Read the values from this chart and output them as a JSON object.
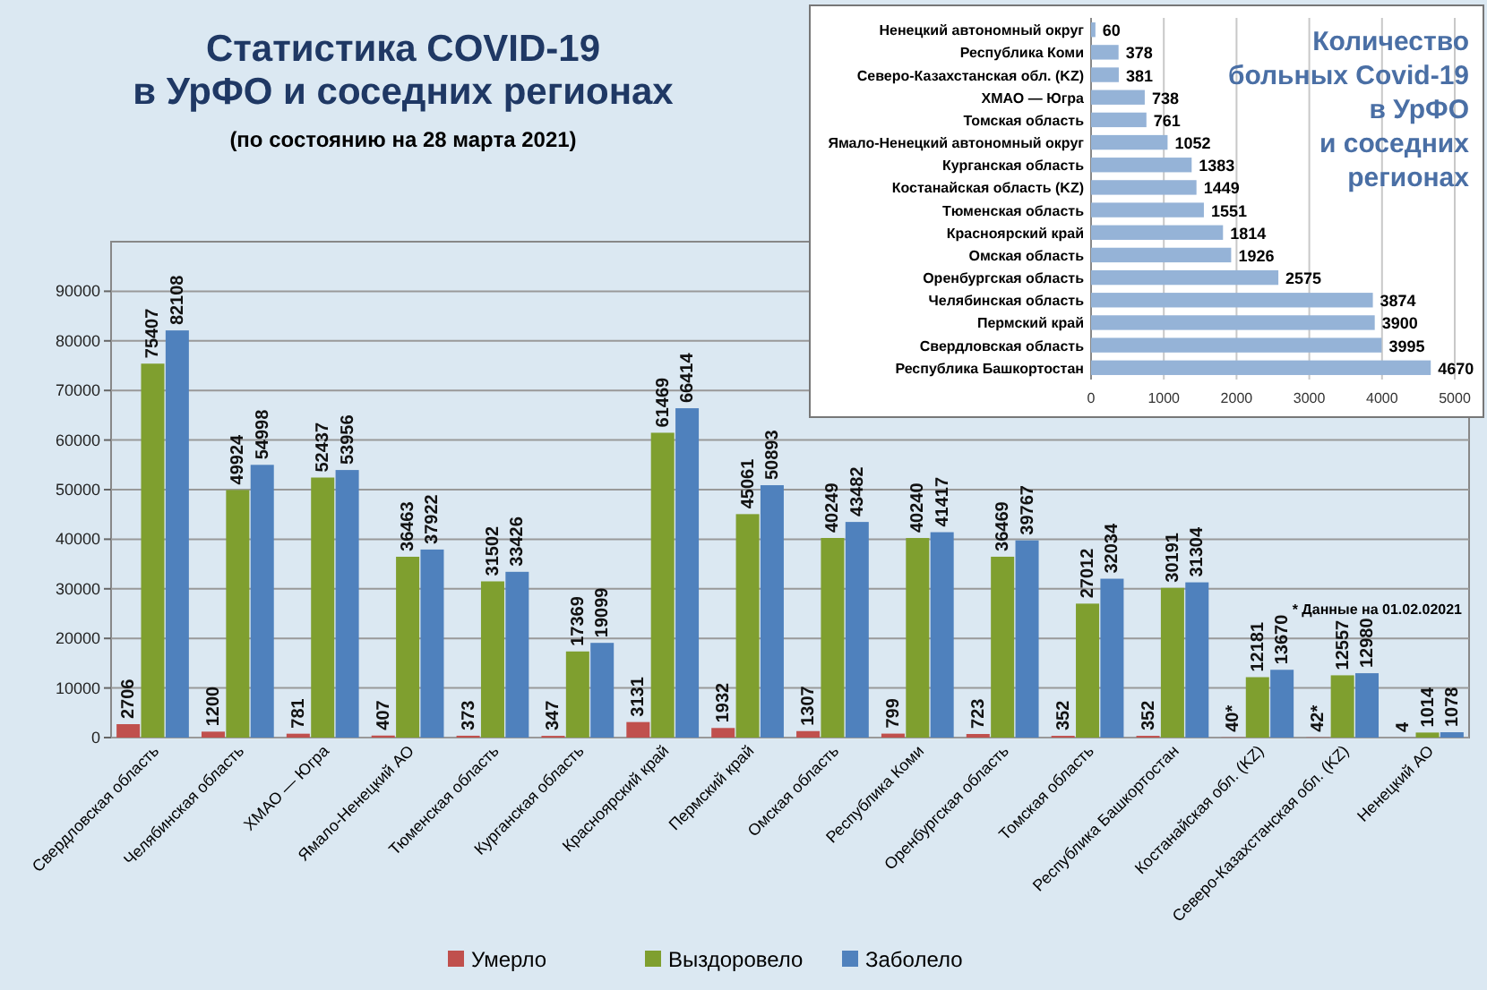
{
  "chart_data": [
    {
      "type": "bar",
      "title": "Статистика COVID-19\nв УрФО и соседних регионах",
      "subtitle": "(по состоянию на 28 марта 2021)",
      "categories": [
        "Свердловская область",
        "Челябинская область",
        "ХМАО — Югра",
        "Ямало-Ненецкий АО",
        "Тюменская область",
        "Курганская область",
        "Красноярский край",
        "Пермский край",
        "Омская область",
        "Республика Коми",
        "Оренбургская область",
        "Томская область",
        "Республика Башкортостан",
        "Костанайская обл. (KZ)",
        "Северо-Казахстанская обл. (KZ)",
        "Ненецкий АО"
      ],
      "series": [
        {
          "name": "Умерло",
          "color": "#c0504d",
          "values": [
            2706,
            1200,
            781,
            407,
            373,
            347,
            3131,
            1932,
            1307,
            799,
            723,
            352,
            352,
            40,
            42,
            4
          ],
          "value_labels": [
            "2706",
            "1200",
            "781",
            "407",
            "373",
            "347",
            "3131",
            "1932",
            "1307",
            "799",
            "723",
            "352",
            "352",
            "40*",
            "42*",
            "4"
          ]
        },
        {
          "name": "Выздоровело",
          "color": "#7f9f2f",
          "values": [
            75407,
            49924,
            52437,
            36463,
            31502,
            17369,
            61469,
            45061,
            40249,
            40240,
            36469,
            27012,
            30191,
            12181,
            12557,
            1014
          ],
          "value_labels": [
            "75407",
            "49924",
            "52437",
            "36463",
            "31502",
            "17369",
            "61469",
            "45061",
            "40249",
            "40240",
            "36469",
            "27012",
            "30191",
            "12181",
            "12557",
            "1014"
          ]
        },
        {
          "name": "Заболело",
          "color": "#4f81bd",
          "values": [
            82108,
            54998,
            53956,
            37922,
            33426,
            19099,
            66414,
            50893,
            43482,
            41417,
            39767,
            32034,
            31304,
            13670,
            12980,
            1078
          ],
          "value_labels": [
            "82108",
            "54998",
            "53956",
            "37922",
            "33426",
            "19099",
            "66414",
            "50893",
            "43482",
            "41417",
            "39767",
            "32034",
            "31304",
            "13670",
            "12980",
            "1078"
          ]
        }
      ],
      "ylim": [
        0,
        100000
      ],
      "yticks": [
        0,
        10000,
        20000,
        30000,
        40000,
        50000,
        60000,
        70000,
        80000,
        90000
      ],
      "grid": "y",
      "legend": "bottom",
      "annotations": [
        "* Данные на 01.02.02021"
      ]
    },
    {
      "type": "bar",
      "orientation": "horizontal",
      "title": "Количество\nбольных Covid-19\nв УрФО\nи соседних\nрегионах",
      "categories": [
        "Ненецкий автономный округ",
        "Республика Коми",
        "Северо-Казахстанская обл. (KZ)",
        "ХМАО — Югра",
        "Томская область",
        "Ямало-Ненецкий автономный округ",
        "Курганская область",
        "Костанайская область (KZ)",
        "Тюменская область",
        "Красноярский край",
        "Омская область",
        "Оренбургская область",
        "Челябинская область",
        "Пермский край",
        "Свердловская область",
        "Республика Башкортостан"
      ],
      "values": [
        60,
        378,
        381,
        738,
        761,
        1052,
        1383,
        1449,
        1551,
        1814,
        1926,
        2575,
        3874,
        3900,
        3995,
        4670
      ],
      "color": "#95b3d7",
      "xlim": [
        0,
        5000
      ],
      "xticks": [
        0,
        1000,
        2000,
        3000,
        4000,
        5000
      ],
      "grid": "x",
      "data_labels": true
    }
  ]
}
